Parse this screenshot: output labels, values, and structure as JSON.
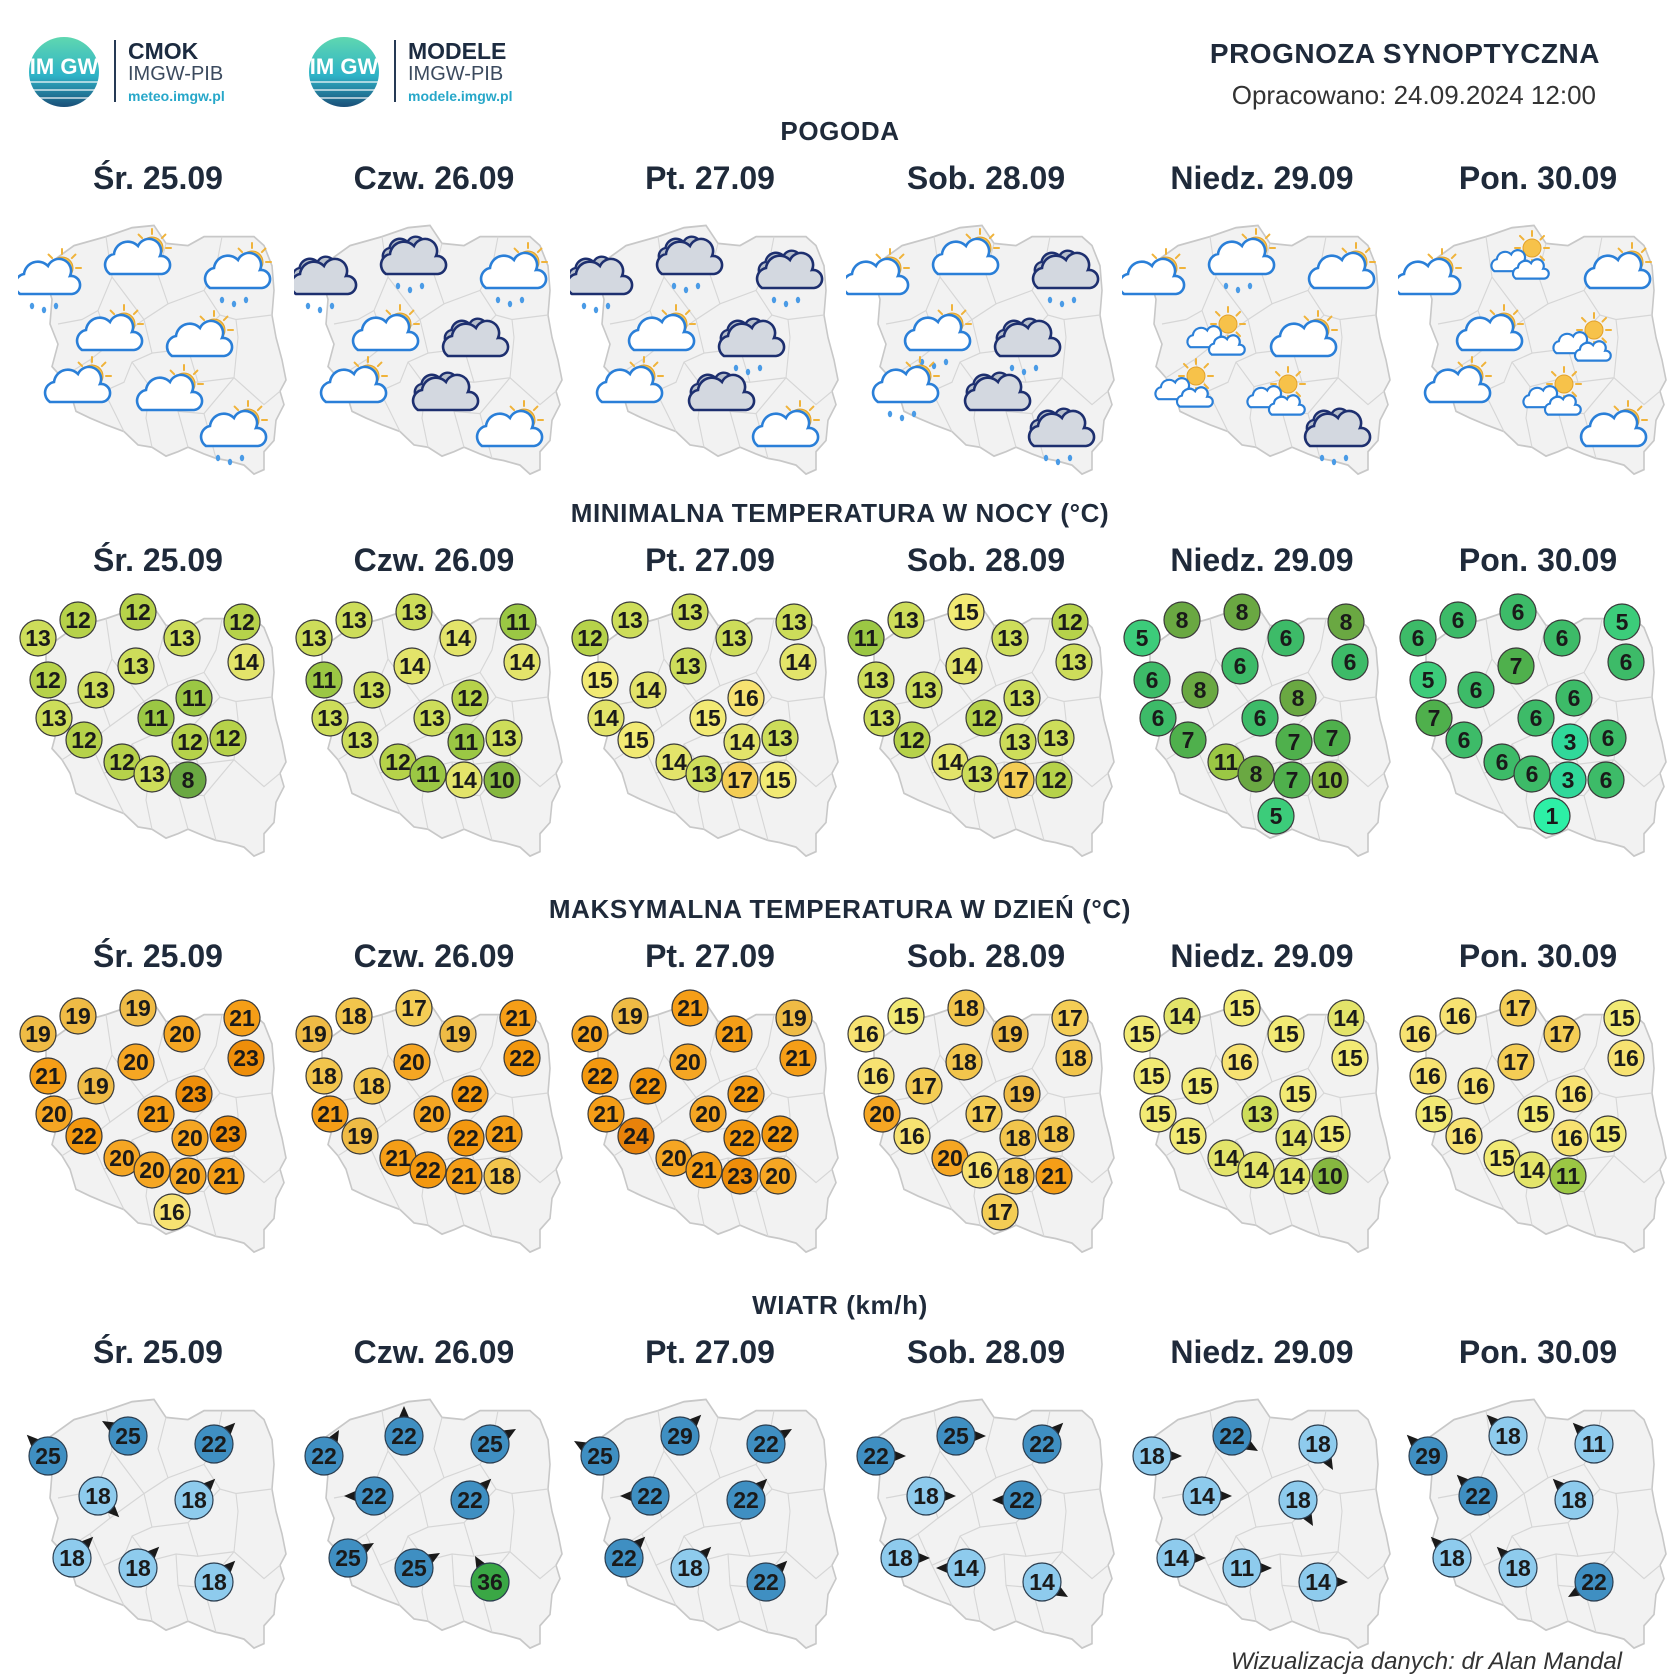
{
  "header": {
    "logo1": {
      "title": "CMOK",
      "subtitle": "IMGW-PIB",
      "url": "meteo.imgw.pl",
      "badge": "IM GW"
    },
    "logo2": {
      "title": "MODELE",
      "subtitle": "IMGW-PIB",
      "url": "modele.imgw.pl",
      "badge": "IM GW"
    },
    "title": "PROGNOZA SYNOPTYCZNA",
    "date": "Opracowano: 24.09.2024 12:00"
  },
  "days": [
    "Śr. 25.09",
    "Czw. 26.09",
    "Pt. 27.09",
    "Sob. 28.09",
    "Niedz. 29.09",
    "Pon. 30.09"
  ],
  "footer": "Wizualizacja danych: dr Alan Mandal",
  "colors": {
    "map_fill": "#f2f2f2",
    "map_stroke": "#c8c8c8",
    "wind_arrow": "#1a1a1a"
  },
  "sections": {
    "weather": {
      "title": "POGODA",
      "icons": [
        [
          "cloud-sun-rain-icon",
          "cloud-sun-icon",
          "cloud-sun-rain-icon",
          "cloud-sun-icon",
          "cloud-sun-icon",
          "cloud-sun-icon",
          "cloud-sun-icon",
          "cloud-sun-rain-icon"
        ],
        [
          "dark-cloud-rain-icon",
          "dark-cloud-rain-icon",
          "cloud-sun-rain-icon",
          "cloud-sun-icon",
          "dark-cloud-icon",
          "cloud-sun-icon",
          "dark-cloud-icon",
          "cloud-sun-icon"
        ],
        [
          "dark-cloud-rain-icon",
          "dark-cloud-rain-icon",
          "dark-cloud-rain-icon",
          "cloud-sun-icon",
          "dark-cloud-rain-icon",
          "cloud-sun-icon",
          "dark-cloud-icon",
          "cloud-sun-icon"
        ],
        [
          "cloud-sun-icon",
          "cloud-sun-icon",
          "dark-cloud-rain-icon",
          "cloud-sun-rain-icon",
          "dark-cloud-rain-icon",
          "cloud-sun-rain-icon",
          "dark-cloud-icon",
          "dark-cloud-rain-icon"
        ],
        [
          "cloud-sun-icon",
          "cloud-sun-rain-icon",
          "cloud-sun-icon",
          "small-clouds-sun-icon",
          "cloud-sun-icon",
          "small-clouds-sun-icon",
          "small-clouds-sun-icon",
          "dark-cloud-rain-icon"
        ],
        [
          "cloud-sun-icon",
          "small-clouds-sun-icon",
          "cloud-sun-icon",
          "cloud-sun-icon",
          "small-clouds-sun-icon",
          "cloud-sun-icon",
          "small-clouds-sun-icon",
          "cloud-sun-icon"
        ]
      ]
    },
    "tmin": {
      "title": "MINIMALNA TEMPERATURA W NOCY (°C)",
      "values": [
        [
          13,
          12,
          12,
          13,
          12,
          14,
          12,
          13,
          13,
          11,
          13,
          12,
          11,
          12,
          12,
          12,
          13,
          8
        ],
        [
          13,
          13,
          13,
          14,
          11,
          14,
          11,
          13,
          14,
          12,
          13,
          13,
          13,
          11,
          13,
          12,
          11,
          14,
          10
        ],
        [
          12,
          13,
          13,
          13,
          13,
          14,
          15,
          14,
          13,
          16,
          14,
          15,
          15,
          14,
          13,
          14,
          13,
          17,
          15
        ],
        [
          11,
          13,
          15,
          13,
          12,
          13,
          13,
          13,
          14,
          13,
          13,
          12,
          12,
          13,
          13,
          14,
          13,
          17,
          12
        ],
        [
          5,
          8,
          8,
          6,
          8,
          6,
          6,
          8,
          6,
          8,
          6,
          7,
          6,
          7,
          7,
          11,
          8,
          7,
          10,
          5
        ],
        [
          6,
          6,
          6,
          6,
          5,
          6,
          5,
          6,
          7,
          6,
          7,
          6,
          6,
          3,
          6,
          6,
          6,
          3,
          6,
          1
        ]
      ]
    },
    "tmax": {
      "title": "MAKSYMALNA TEMPERATURA W DZIEŃ (°C)",
      "values": [
        [
          19,
          19,
          19,
          20,
          21,
          23,
          21,
          19,
          20,
          23,
          20,
          22,
          21,
          20,
          23,
          20,
          20,
          20,
          21,
          16
        ],
        [
          19,
          18,
          17,
          19,
          21,
          22,
          18,
          18,
          20,
          22,
          21,
          19,
          20,
          22,
          21,
          21,
          22,
          21,
          18
        ],
        [
          20,
          19,
          21,
          21,
          19,
          21,
          22,
          22,
          20,
          22,
          21,
          24,
          20,
          22,
          22,
          20,
          21,
          23,
          20
        ],
        [
          16,
          15,
          18,
          19,
          17,
          18,
          16,
          17,
          18,
          19,
          20,
          16,
          17,
          18,
          18,
          20,
          16,
          18,
          21,
          17
        ],
        [
          15,
          14,
          15,
          15,
          14,
          15,
          15,
          15,
          16,
          15,
          15,
          15,
          13,
          14,
          15,
          14,
          14,
          14,
          10
        ],
        [
          16,
          16,
          17,
          17,
          15,
          16,
          16,
          16,
          17,
          16,
          15,
          16,
          15,
          16,
          15,
          15,
          14,
          11
        ]
      ]
    },
    "wind": {
      "title": "WIATR (km/h)",
      "values": [
        [
          25,
          25,
          22,
          18,
          18,
          18,
          18,
          18
        ],
        [
          22,
          22,
          25,
          22,
          22,
          25,
          25,
          36
        ],
        [
          25,
          29,
          22,
          22,
          22,
          22,
          18,
          22
        ],
        [
          22,
          25,
          22,
          18,
          22,
          18,
          14,
          14
        ],
        [
          18,
          22,
          18,
          14,
          18,
          14,
          11,
          14
        ],
        [
          29,
          18,
          11,
          22,
          18,
          18,
          18,
          22
        ]
      ],
      "directions": [
        [
          315,
          300,
          45,
          135,
          45,
          45,
          45,
          45
        ],
        [
          30,
          0,
          60,
          270,
          45,
          60,
          60,
          330
        ],
        [
          300,
          45,
          60,
          270,
          45,
          45,
          45,
          45
        ],
        [
          90,
          90,
          45,
          90,
          270,
          90,
          270,
          120
        ],
        [
          90,
          120,
          150,
          90,
          150,
          90,
          90,
          90
        ],
        [
          315,
          315,
          315,
          315,
          315,
          315,
          315,
          240
        ]
      ]
    }
  }
}
